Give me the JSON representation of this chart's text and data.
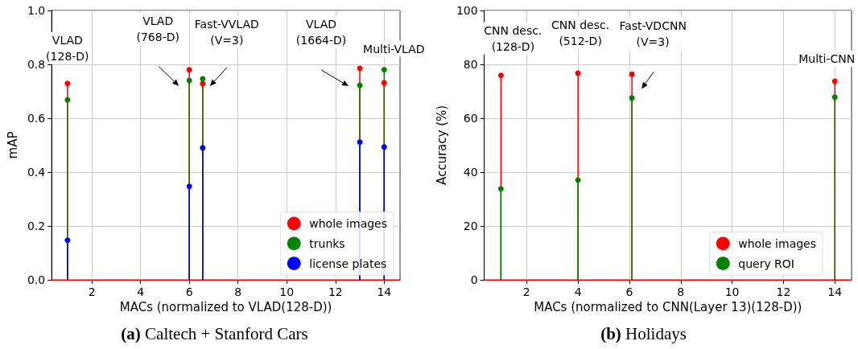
{
  "chart_data": [
    {
      "type": "lollipop",
      "title": "(a) Caltech + Stanford Cars",
      "xlabel": "MACs (normalized to VLAD(128-D))",
      "ylabel": "mAP",
      "xlim": [
        0.35,
        14.65
      ],
      "xticks": [
        2,
        4,
        6,
        8,
        10,
        12,
        14
      ],
      "ylim": [
        0,
        1
      ],
      "yticks": [
        {
          "value": 0,
          "label": "0.0"
        },
        0.2,
        0.4,
        0.6,
        0.8,
        {
          "value": 1,
          "label": "1.0"
        }
      ],
      "grid": true,
      "legend": "bottom right",
      "marker": "circle",
      "x": [
        1,
        6,
        6.55,
        13,
        14
      ],
      "series": [
        {
          "name": "whole images",
          "color": "#ff0000",
          "values": [
            0.729,
            0.78,
            0.728,
            0.785,
            0.731
          ]
        },
        {
          "name": "trunks",
          "color": "#008000",
          "values": [
            0.668,
            0.74,
            0.746,
            0.722,
            0.78
          ]
        },
        {
          "name": "license plates",
          "color": "#0000ff",
          "values": [
            0.147,
            0.347,
            0.49,
            0.511,
            0.493
          ]
        }
      ],
      "ref_lines": [
        {
          "axis": "y",
          "value": 0,
          "color": "#ff0000"
        }
      ],
      "annotations": [
        {
          "text": "VLAD\n(128-D)",
          "x": 1,
          "y": 0.729
        },
        {
          "text": "VLAD\n(768-D)",
          "x": 6,
          "y": 0.78
        },
        {
          "text": "Fast-VVLAD\n(V=3)",
          "x": 6.55,
          "y": 0.746
        },
        {
          "text": "VLAD\n(1664-D)",
          "x": 13,
          "y": 0.785
        },
        {
          "text": "Multi-VLAD",
          "x": 14,
          "y": 0.78
        }
      ]
    },
    {
      "type": "lollipop",
      "title": "(b) Holidays",
      "xlabel": "MACs (normalized to CNN(Layer 13)(128-D))",
      "ylabel": "Accuracy (%)",
      "xlim": [
        0.35,
        14.65
      ],
      "xticks": [
        2,
        4,
        6,
        8,
        10,
        12,
        14
      ],
      "ylim": [
        0,
        100
      ],
      "yticks": [
        0,
        20,
        40,
        60,
        80,
        100
      ],
      "grid": true,
      "legend": "bottom right",
      "marker": "circle",
      "x": [
        1,
        4,
        6.1,
        14
      ],
      "series": [
        {
          "name": "whole images",
          "color": "#ff0000",
          "values": [
            75.9,
            76.7,
            76.3,
            73.7
          ]
        },
        {
          "name": "query ROI",
          "color": "#008000",
          "values": [
            33.8,
            37.0,
            67.5,
            67.8
          ]
        }
      ],
      "ref_lines": [
        {
          "axis": "y",
          "value": 0,
          "color": "#ff0000"
        }
      ],
      "annotations": [
        {
          "text": "CNN desc.\n(128-D)",
          "x": 1,
          "y": 75.9
        },
        {
          "text": "CNN desc.\n(512-D)",
          "x": 4,
          "y": 76.7
        },
        {
          "text": "Fast-VDCNN\n(V=3)",
          "x": 6.1,
          "y": 76.3
        },
        {
          "text": "Multi-CNN",
          "x": 14,
          "y": 73.7
        }
      ]
    }
  ]
}
